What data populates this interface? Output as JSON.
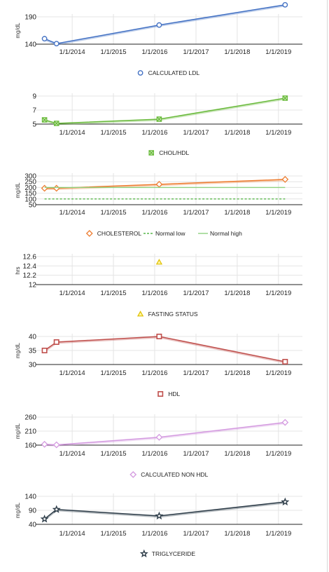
{
  "chart_data": [
    {
      "type": "line",
      "ylabel": "mg/dL",
      "ylim": [
        140,
        190
      ],
      "yticks": [
        140,
        190
      ],
      "x_ticks": [
        "1/1/2014",
        "1/1/2015",
        "1/1/2016",
        "1/1/2017",
        "1/1/2018",
        "1/1/2019"
      ],
      "series": [
        {
          "name": "CALCULATED LDL",
          "color": "#4472c4",
          "marker": "circle",
          "points": [
            {
              "x": "2013-05-01",
              "y": 150
            },
            {
              "x": "2013-08-15",
              "y": 141
            },
            {
              "x": "2016-02-10",
              "y": 175
            },
            {
              "x": "2019-03-01",
              "y": 212
            }
          ]
        }
      ],
      "legend_position": "bottom",
      "grid": true
    },
    {
      "type": "line",
      "ylabel": "",
      "ylim": [
        5,
        9
      ],
      "yticks": [
        5,
        7,
        9
      ],
      "x_ticks": [
        "1/1/2014",
        "1/1/2015",
        "1/1/2016",
        "1/1/2017",
        "1/1/2018",
        "1/1/2019"
      ],
      "series": [
        {
          "name": "CHOL/HDL",
          "color": "#6aba3c",
          "marker": "x-square",
          "points": [
            {
              "x": "2013-05-01",
              "y": 5.6
            },
            {
              "x": "2013-08-15",
              "y": 5.1
            },
            {
              "x": "2016-02-10",
              "y": 5.7
            },
            {
              "x": "2019-03-01",
              "y": 8.7
            }
          ]
        }
      ],
      "legend_position": "bottom",
      "grid": true
    },
    {
      "type": "line",
      "ylabel": "mg/dL",
      "ylim": [
        50,
        300
      ],
      "yticks": [
        50,
        100,
        150,
        200,
        250,
        300
      ],
      "x_ticks": [
        "1/1/2014",
        "1/1/2015",
        "1/1/2016",
        "1/1/2017",
        "1/1/2018",
        "1/1/2019"
      ],
      "series": [
        {
          "name": "CHOLESTEROL",
          "color": "#ed7d31",
          "marker": "diamond",
          "points": [
            {
              "x": "2013-05-01",
              "y": 193
            },
            {
              "x": "2013-08-15",
              "y": 193
            },
            {
              "x": "2016-02-10",
              "y": 227
            },
            {
              "x": "2019-03-01",
              "y": 270
            }
          ]
        },
        {
          "name": "Normal low",
          "color": "#59b84c",
          "dashed": true,
          "points": [
            {
              "x": "2013-05-01",
              "y": 100
            },
            {
              "x": "2019-03-01",
              "y": 100
            }
          ]
        },
        {
          "name": "Normal high",
          "color": "#8fd17f",
          "dashed": false,
          "points": [
            {
              "x": "2013-05-01",
              "y": 200
            },
            {
              "x": "2019-03-01",
              "y": 200
            }
          ]
        }
      ],
      "legend_position": "bottom",
      "grid": true
    },
    {
      "type": "scatter",
      "ylabel": "hrs",
      "ylim": [
        12,
        12.6
      ],
      "yticks": [
        12,
        12.2,
        12.4,
        12.6
      ],
      "x_ticks": [
        "1/1/2014",
        "1/1/2015",
        "1/1/2016",
        "1/1/2017",
        "1/1/2018",
        "1/1/2019"
      ],
      "series": [
        {
          "name": "FASTING STATUS",
          "color": "#e0c000",
          "marker": "triangle",
          "points": [
            {
              "x": "2016-02-10",
              "y": 12.48
            }
          ]
        }
      ],
      "legend_position": "bottom",
      "grid": true
    },
    {
      "type": "line",
      "ylabel": "mg/dL",
      "ylim": [
        30,
        40
      ],
      "yticks": [
        30,
        35,
        40
      ],
      "x_ticks": [
        "1/1/2014",
        "1/1/2015",
        "1/1/2016",
        "1/1/2017",
        "1/1/2018",
        "1/1/2019"
      ],
      "series": [
        {
          "name": "HDL",
          "color": "#c0504d",
          "marker": "square",
          "points": [
            {
              "x": "2013-05-01",
              "y": 35
            },
            {
              "x": "2013-08-15",
              "y": 38
            },
            {
              "x": "2016-02-10",
              "y": 40
            },
            {
              "x": "2019-03-01",
              "y": 31
            }
          ]
        }
      ],
      "legend_position": "bottom",
      "grid": true
    },
    {
      "type": "line",
      "ylabel": "mg/dL",
      "ylim": [
        160,
        260
      ],
      "yticks": [
        160,
        210,
        260
      ],
      "x_ticks": [
        "1/1/2014",
        "1/1/2015",
        "1/1/2016",
        "1/1/2017",
        "1/1/2018",
        "1/1/2019"
      ],
      "series": [
        {
          "name": "CALCULATED NON HDL",
          "color": "#d49ae0",
          "marker": "diamond",
          "points": [
            {
              "x": "2013-05-01",
              "y": 163
            },
            {
              "x": "2013-08-15",
              "y": 161
            },
            {
              "x": "2016-02-10",
              "y": 188
            },
            {
              "x": "2019-03-01",
              "y": 241
            }
          ]
        }
      ],
      "legend_position": "bottom",
      "grid": true
    },
    {
      "type": "line",
      "ylabel": "mg/dL",
      "ylim": [
        40,
        140
      ],
      "yticks": [
        40,
        90,
        140
      ],
      "x_ticks": [
        "1/1/2014",
        "1/1/2015",
        "1/1/2016",
        "1/1/2017",
        "1/1/2018",
        "1/1/2019"
      ],
      "series": [
        {
          "name": "TRIGLYCERIDE",
          "color": "#2f3e4a",
          "marker": "star",
          "points": [
            {
              "x": "2013-05-01",
              "y": 59
            },
            {
              "x": "2013-08-15",
              "y": 93
            },
            {
              "x": "2016-02-10",
              "y": 70
            },
            {
              "x": "2019-03-01",
              "y": 120
            }
          ]
        }
      ],
      "legend_position": "bottom",
      "grid": true
    }
  ]
}
